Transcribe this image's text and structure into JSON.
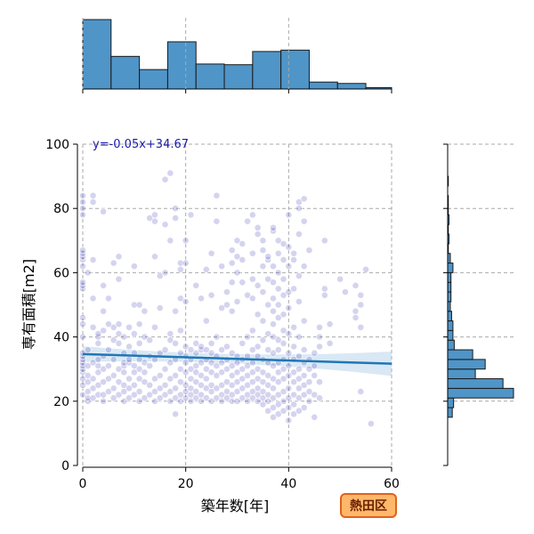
{
  "chart_data": {
    "type": "scatter",
    "x_label": "築年数[年]",
    "y_label": "専有面積[m2]",
    "xlim": [
      0,
      60
    ],
    "ylim": [
      0,
      100
    ],
    "x_ticks": [
      0,
      20,
      40,
      60
    ],
    "y_ticks": [
      0,
      20,
      40,
      60,
      80,
      100
    ],
    "grid": true,
    "annotation": "y=-0.05x+34.67",
    "badge": "熱田区",
    "regression": {
      "slope": -0.05,
      "intercept": 34.67,
      "band_halfwidth_min": 1.4,
      "band_halfwidth_max": 3.8
    },
    "colors": {
      "point": "#3a3ab8",
      "line": "#1f77b4",
      "band": "#aacbe6",
      "hist": "#4f95c8",
      "badge_bg": "#ffb86b",
      "badge_border": "#e0621a"
    },
    "top_histogram": {
      "bin_edges": [
        0,
        5.5,
        11,
        16.5,
        22,
        27.5,
        33,
        38.5,
        44,
        49.5,
        55,
        60
      ],
      "counts": [
        100,
        47,
        28,
        68,
        36,
        35,
        54,
        56,
        10,
        8,
        2
      ]
    },
    "right_histogram": {
      "bin_edges": [
        15,
        18,
        21,
        24,
        27,
        30,
        33,
        36,
        39,
        42,
        45,
        48,
        51,
        54,
        57,
        60,
        63,
        66,
        69,
        72,
        75,
        78,
        81,
        84,
        87,
        90
      ],
      "counts": [
        7,
        9,
        100,
        84,
        42,
        57,
        38,
        10,
        8,
        8,
        6,
        4,
        5,
        5,
        5,
        8,
        4,
        1,
        2,
        1,
        2,
        1,
        1,
        0,
        1
      ]
    },
    "points": [
      [
        0,
        22
      ],
      [
        0,
        25
      ],
      [
        0,
        27
      ],
      [
        0,
        29
      ],
      [
        0,
        30
      ],
      [
        0,
        31
      ],
      [
        0,
        32
      ],
      [
        0,
        33
      ],
      [
        0,
        34
      ],
      [
        0,
        35
      ],
      [
        0,
        40
      ],
      [
        0,
        44
      ],
      [
        0,
        46
      ],
      [
        0,
        55
      ],
      [
        0,
        56
      ],
      [
        0,
        57
      ],
      [
        0,
        62
      ],
      [
        0,
        64
      ],
      [
        0,
        65
      ],
      [
        0,
        66
      ],
      [
        0,
        67
      ],
      [
        0,
        78
      ],
      [
        0,
        80
      ],
      [
        0,
        82
      ],
      [
        0,
        84
      ],
      [
        1,
        20
      ],
      [
        1,
        21
      ],
      [
        1,
        23
      ],
      [
        1,
        26
      ],
      [
        1,
        28
      ],
      [
        1,
        31
      ],
      [
        1,
        36
      ],
      [
        1,
        60
      ],
      [
        2,
        21
      ],
      [
        2,
        24
      ],
      [
        2,
        27
      ],
      [
        2,
        32
      ],
      [
        2,
        43
      ],
      [
        2,
        52
      ],
      [
        2,
        64
      ],
      [
        2,
        82
      ],
      [
        2,
        84
      ],
      [
        3,
        22
      ],
      [
        3,
        25
      ],
      [
        3,
        29
      ],
      [
        3,
        31
      ],
      [
        3,
        33
      ],
      [
        3,
        38
      ],
      [
        3,
        40
      ],
      [
        3,
        41
      ],
      [
        4,
        20
      ],
      [
        4,
        22
      ],
      [
        4,
        26
      ],
      [
        4,
        30
      ],
      [
        4,
        34
      ],
      [
        4,
        42
      ],
      [
        4,
        48
      ],
      [
        4,
        56
      ],
      [
        4,
        79
      ],
      [
        5,
        23
      ],
      [
        5,
        27
      ],
      [
        5,
        31
      ],
      [
        5,
        36
      ],
      [
        5,
        44
      ],
      [
        5,
        52
      ],
      [
        6,
        21
      ],
      [
        6,
        24
      ],
      [
        6,
        28
      ],
      [
        6,
        33
      ],
      [
        6,
        39
      ],
      [
        6,
        43
      ],
      [
        6,
        63
      ],
      [
        7,
        22
      ],
      [
        7,
        26
      ],
      [
        7,
        30
      ],
      [
        7,
        38
      ],
      [
        7,
        41
      ],
      [
        7,
        44
      ],
      [
        7,
        58
      ],
      [
        7,
        65
      ],
      [
        8,
        20
      ],
      [
        8,
        23
      ],
      [
        8,
        25
      ],
      [
        8,
        29
      ],
      [
        8,
        31
      ],
      [
        8,
        32
      ],
      [
        8,
        35
      ],
      [
        8,
        40
      ],
      [
        9,
        21
      ],
      [
        9,
        24
      ],
      [
        9,
        27
      ],
      [
        9,
        32
      ],
      [
        9,
        33
      ],
      [
        9,
        37
      ],
      [
        9,
        43
      ],
      [
        10,
        22
      ],
      [
        10,
        25
      ],
      [
        10,
        29
      ],
      [
        10,
        31
      ],
      [
        10,
        35
      ],
      [
        10,
        41
      ],
      [
        10,
        50
      ],
      [
        10,
        62
      ],
      [
        11,
        20
      ],
      [
        11,
        23
      ],
      [
        11,
        27
      ],
      [
        11,
        30
      ],
      [
        11,
        33
      ],
      [
        11,
        38
      ],
      [
        11,
        44
      ],
      [
        11,
        50
      ],
      [
        12,
        21
      ],
      [
        12,
        26
      ],
      [
        12,
        29
      ],
      [
        12,
        32
      ],
      [
        12,
        40
      ],
      [
        12,
        48
      ],
      [
        13,
        22
      ],
      [
        13,
        25
      ],
      [
        13,
        31
      ],
      [
        13,
        34
      ],
      [
        13,
        39
      ],
      [
        13,
        77
      ],
      [
        14,
        20
      ],
      [
        14,
        23
      ],
      [
        14,
        27
      ],
      [
        14,
        33
      ],
      [
        14,
        43
      ],
      [
        14,
        65
      ],
      [
        14,
        78
      ],
      [
        14,
        76
      ],
      [
        15,
        21
      ],
      [
        15,
        24
      ],
      [
        15,
        28
      ],
      [
        15,
        35
      ],
      [
        15,
        49
      ],
      [
        15,
        59
      ],
      [
        16,
        22
      ],
      [
        16,
        25
      ],
      [
        16,
        30
      ],
      [
        16,
        36
      ],
      [
        16,
        60
      ],
      [
        16,
        75
      ],
      [
        16,
        89
      ],
      [
        17,
        20
      ],
      [
        17,
        23
      ],
      [
        17,
        27
      ],
      [
        17,
        32
      ],
      [
        17,
        39
      ],
      [
        17,
        41
      ],
      [
        17,
        70
      ],
      [
        17,
        91
      ],
      [
        18,
        16
      ],
      [
        18,
        21
      ],
      [
        18,
        24
      ],
      [
        18,
        28
      ],
      [
        18,
        33
      ],
      [
        18,
        38
      ],
      [
        18,
        48
      ],
      [
        18,
        77
      ],
      [
        18,
        80
      ],
      [
        19,
        20
      ],
      [
        19,
        22
      ],
      [
        19,
        26
      ],
      [
        19,
        30
      ],
      [
        19,
        35
      ],
      [
        19,
        42
      ],
      [
        19,
        52
      ],
      [
        19,
        61
      ],
      [
        19,
        63
      ],
      [
        20,
        21
      ],
      [
        20,
        23
      ],
      [
        20,
        25
      ],
      [
        20,
        29
      ],
      [
        20,
        32
      ],
      [
        20,
        34
      ],
      [
        20,
        37
      ],
      [
        20,
        51
      ],
      [
        20,
        63
      ],
      [
        20,
        70
      ],
      [
        21,
        20
      ],
      [
        21,
        22
      ],
      [
        21,
        24
      ],
      [
        21,
        27
      ],
      [
        21,
        30
      ],
      [
        21,
        33
      ],
      [
        21,
        36
      ],
      [
        21,
        78
      ],
      [
        22,
        21
      ],
      [
        22,
        23
      ],
      [
        22,
        26
      ],
      [
        22,
        29
      ],
      [
        22,
        31
      ],
      [
        22,
        35
      ],
      [
        22,
        38
      ],
      [
        22,
        56
      ],
      [
        23,
        20
      ],
      [
        23,
        22
      ],
      [
        23,
        25
      ],
      [
        23,
        28
      ],
      [
        23,
        32
      ],
      [
        23,
        36
      ],
      [
        23,
        37
      ],
      [
        23,
        52
      ],
      [
        24,
        21
      ],
      [
        24,
        24
      ],
      [
        24,
        27
      ],
      [
        24,
        30
      ],
      [
        24,
        33
      ],
      [
        24,
        36
      ],
      [
        24,
        45
      ],
      [
        24,
        61
      ],
      [
        25,
        20
      ],
      [
        25,
        23
      ],
      [
        25,
        25
      ],
      [
        25,
        29
      ],
      [
        25,
        32
      ],
      [
        25,
        35
      ],
      [
        25,
        38
      ],
      [
        25,
        53
      ],
      [
        25,
        66
      ],
      [
        26,
        21
      ],
      [
        26,
        24
      ],
      [
        26,
        28
      ],
      [
        26,
        31
      ],
      [
        26,
        34
      ],
      [
        26,
        40
      ],
      [
        26,
        84
      ],
      [
        26,
        76
      ],
      [
        27,
        20
      ],
      [
        27,
        22
      ],
      [
        27,
        25
      ],
      [
        27,
        29
      ],
      [
        27,
        32
      ],
      [
        27,
        36
      ],
      [
        27,
        49
      ],
      [
        27,
        62
      ],
      [
        28,
        21
      ],
      [
        28,
        23
      ],
      [
        28,
        26
      ],
      [
        28,
        30
      ],
      [
        28,
        33
      ],
      [
        28,
        37
      ],
      [
        28,
        54
      ],
      [
        28,
        50
      ],
      [
        29,
        20
      ],
      [
        29,
        22
      ],
      [
        29,
        25
      ],
      [
        29,
        28
      ],
      [
        29,
        31
      ],
      [
        29,
        35
      ],
      [
        29,
        48
      ],
      [
        29,
        57
      ],
      [
        29,
        63
      ],
      [
        29,
        67
      ],
      [
        30,
        20
      ],
      [
        30,
        23
      ],
      [
        30,
        26
      ],
      [
        30,
        29
      ],
      [
        30,
        32
      ],
      [
        30,
        34
      ],
      [
        30,
        51
      ],
      [
        30,
        60
      ],
      [
        30,
        65
      ],
      [
        30,
        70
      ],
      [
        31,
        21
      ],
      [
        31,
        24
      ],
      [
        31,
        27
      ],
      [
        31,
        30
      ],
      [
        31,
        33
      ],
      [
        31,
        38
      ],
      [
        31,
        57
      ],
      [
        31,
        64
      ],
      [
        31,
        69
      ],
      [
        32,
        20
      ],
      [
        32,
        22
      ],
      [
        32,
        25
      ],
      [
        32,
        28
      ],
      [
        32,
        31
      ],
      [
        32,
        34
      ],
      [
        32,
        40
      ],
      [
        32,
        53
      ],
      [
        32,
        76
      ],
      [
        33,
        21
      ],
      [
        33,
        23
      ],
      [
        33,
        26
      ],
      [
        33,
        29
      ],
      [
        33,
        32
      ],
      [
        33,
        36
      ],
      [
        33,
        42
      ],
      [
        33,
        52
      ],
      [
        33,
        58
      ],
      [
        33,
        66
      ],
      [
        33,
        78
      ],
      [
        34,
        20
      ],
      [
        34,
        22
      ],
      [
        34,
        24
      ],
      [
        34,
        27
      ],
      [
        34,
        30
      ],
      [
        34,
        34
      ],
      [
        34,
        37
      ],
      [
        34,
        47
      ],
      [
        34,
        56
      ],
      [
        34,
        72
      ],
      [
        34,
        74
      ],
      [
        35,
        19
      ],
      [
        35,
        21
      ],
      [
        35,
        23
      ],
      [
        35,
        26
      ],
      [
        35,
        29
      ],
      [
        35,
        33
      ],
      [
        35,
        39
      ],
      [
        35,
        45
      ],
      [
        35,
        54
      ],
      [
        35,
        62
      ],
      [
        35,
        67
      ],
      [
        35,
        70
      ],
      [
        36,
        17
      ],
      [
        36,
        20
      ],
      [
        36,
        22
      ],
      [
        36,
        25
      ],
      [
        36,
        28
      ],
      [
        36,
        32
      ],
      [
        36,
        36
      ],
      [
        36,
        41
      ],
      [
        36,
        50
      ],
      [
        36,
        58
      ],
      [
        36,
        64
      ],
      [
        36,
        65
      ],
      [
        37,
        15
      ],
      [
        37,
        18
      ],
      [
        37,
        21
      ],
      [
        37,
        24
      ],
      [
        37,
        27
      ],
      [
        37,
        31
      ],
      [
        37,
        35
      ],
      [
        37,
        40
      ],
      [
        37,
        44
      ],
      [
        37,
        48
      ],
      [
        37,
        52
      ],
      [
        37,
        57
      ],
      [
        37,
        62
      ],
      [
        37,
        73
      ],
      [
        37,
        74
      ],
      [
        38,
        16
      ],
      [
        38,
        19
      ],
      [
        38,
        22
      ],
      [
        38,
        26
      ],
      [
        38,
        29
      ],
      [
        38,
        32
      ],
      [
        38,
        36
      ],
      [
        38,
        39
      ],
      [
        38,
        46
      ],
      [
        38,
        50
      ],
      [
        38,
        55
      ],
      [
        38,
        60
      ],
      [
        38,
        66
      ],
      [
        38,
        70
      ],
      [
        39,
        17
      ],
      [
        39,
        20
      ],
      [
        39,
        23
      ],
      [
        39,
        27
      ],
      [
        39,
        30
      ],
      [
        39,
        33
      ],
      [
        39,
        38
      ],
      [
        39,
        42
      ],
      [
        39,
        47
      ],
      [
        39,
        53
      ],
      [
        39,
        58
      ],
      [
        39,
        64
      ],
      [
        39,
        69
      ],
      [
        40,
        14
      ],
      [
        40,
        18
      ],
      [
        40,
        21
      ],
      [
        40,
        24
      ],
      [
        40,
        28
      ],
      [
        40,
        31
      ],
      [
        40,
        35
      ],
      [
        40,
        41
      ],
      [
        40,
        49
      ],
      [
        40,
        54
      ],
      [
        40,
        62
      ],
      [
        40,
        68
      ],
      [
        40,
        78
      ],
      [
        41,
        16
      ],
      [
        41,
        19
      ],
      [
        41,
        22
      ],
      [
        41,
        26
      ],
      [
        41,
        29
      ],
      [
        41,
        33
      ],
      [
        41,
        37
      ],
      [
        41,
        43
      ],
      [
        41,
        55
      ],
      [
        41,
        64
      ],
      [
        41,
        66
      ],
      [
        42,
        17
      ],
      [
        42,
        21
      ],
      [
        42,
        24
      ],
      [
        42,
        27
      ],
      [
        42,
        30
      ],
      [
        42,
        34
      ],
      [
        42,
        40
      ],
      [
        42,
        51
      ],
      [
        42,
        59
      ],
      [
        42,
        72
      ],
      [
        42,
        80
      ],
      [
        42,
        82
      ],
      [
        43,
        18
      ],
      [
        43,
        22
      ],
      [
        43,
        25
      ],
      [
        43,
        28
      ],
      [
        43,
        32
      ],
      [
        43,
        36
      ],
      [
        43,
        45
      ],
      [
        43,
        62
      ],
      [
        43,
        76
      ],
      [
        43,
        83
      ],
      [
        44,
        20
      ],
      [
        44,
        23
      ],
      [
        44,
        26
      ],
      [
        44,
        30
      ],
      [
        44,
        33
      ],
      [
        44,
        67
      ],
      [
        45,
        15
      ],
      [
        45,
        22
      ],
      [
        45,
        28
      ],
      [
        45,
        31
      ],
      [
        45,
        35
      ],
      [
        46,
        21
      ],
      [
        46,
        26
      ],
      [
        46,
        37
      ],
      [
        46,
        40
      ],
      [
        46,
        43
      ],
      [
        47,
        53
      ],
      [
        47,
        55
      ],
      [
        47,
        70
      ],
      [
        48,
        38
      ],
      [
        48,
        44
      ],
      [
        50,
        58
      ],
      [
        51,
        54
      ],
      [
        53,
        48
      ],
      [
        53,
        56
      ],
      [
        53,
        46
      ],
      [
        54,
        23
      ],
      [
        54,
        43
      ],
      [
        54,
        50
      ],
      [
        54,
        53
      ],
      [
        55,
        61
      ],
      [
        56,
        13
      ]
    ]
  }
}
